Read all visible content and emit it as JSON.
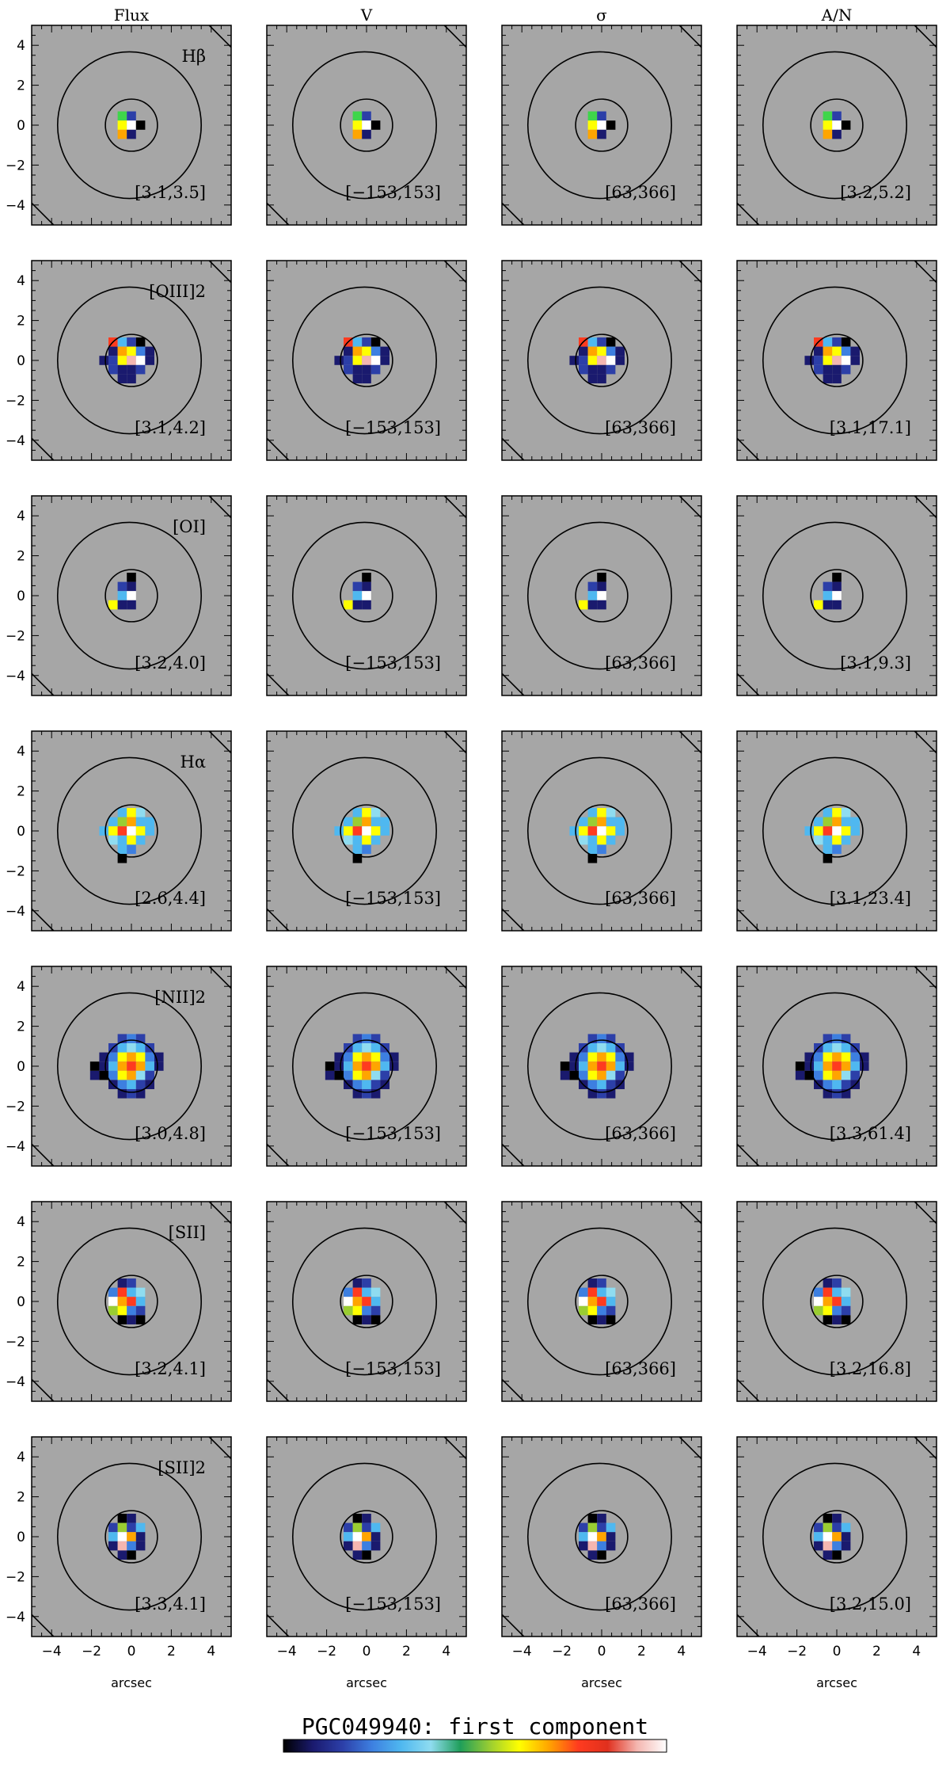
{
  "chart_data": {
    "type": "heatmap",
    "title": "PGC049940: first component",
    "xlabel": "arcsec",
    "ylabel": "",
    "xlim": [
      -5,
      5
    ],
    "ylim": [
      -5,
      5
    ],
    "xticks": [
      -4,
      -2,
      0,
      2,
      4
    ],
    "yticks": [
      -4,
      -2,
      0,
      2,
      4
    ],
    "columns": [
      "Flux",
      "V",
      "σ",
      "A/N"
    ],
    "grid": false,
    "background": "#a6a6a6",
    "colormap": [
      "#000000",
      "#1a1a6e",
      "#2c3fa8",
      "#3d7fe0",
      "#4fb8f0",
      "#8fdcf0",
      "#1f9e5a",
      "#9acd32",
      "#ffff00",
      "#ffa500",
      "#ff3b1f",
      "#e0301e",
      "#f4b6b0",
      "#ffffff"
    ],
    "rows": [
      {
        "line": "Hβ",
        "radius": 1.5,
        "ranges": [
          "[3.1,3.5]",
          "[−153,153]",
          "[63,366]",
          "[3.2,5.2]"
        ],
        "outer_radius": 3.6
      },
      {
        "line": "[OIII]2",
        "radius": 1.5,
        "ranges": [
          "[3.1,4.2]",
          "[−153,153]",
          "[63,366]",
          "[3.1,17.1]"
        ],
        "outer_radius": 3.6
      },
      {
        "line": "[OI]",
        "radius": 1.5,
        "ranges": [
          "[3.2,4.0]",
          "[−153,153]",
          "[63,366]",
          "[3.1,9.3]"
        ],
        "outer_radius": 3.6
      },
      {
        "line": "Hα",
        "radius": 1.5,
        "ranges": [
          "[2.6,4.4]",
          "[−153,153]",
          "[63,366]",
          "[3.1,23.4]"
        ],
        "outer_radius": 3.6
      },
      {
        "line": "[NII]2",
        "radius": 1.5,
        "ranges": [
          "[3.0,4.8]",
          "[−153,153]",
          "[63,366]",
          "[3.3,61.4]"
        ],
        "outer_radius": 3.6
      },
      {
        "line": "[SII]",
        "radius": 1.5,
        "ranges": [
          "[3.2,4.1]",
          "[−153,153]",
          "[63,366]",
          "[3.2,16.8]"
        ],
        "outer_radius": 3.6
      },
      {
        "line": "[SII]2",
        "radius": 1.5,
        "ranges": [
          "[3.3,4.1]",
          "[−153,153]",
          "[63,366]",
          "[3.2,15.0]"
        ],
        "outer_radius": 3.6
      }
    ],
    "pixel_maps": [
      {
        "extent": 0.9,
        "cells": [
          [
            -1,
            1,
            "#3fd64a"
          ],
          [
            0,
            1,
            "#2c3fa8"
          ],
          [
            -1,
            0,
            "#ffff00"
          ],
          [
            0,
            0,
            "#ffffff"
          ],
          [
            1,
            0,
            "#000000"
          ],
          [
            -1,
            -1,
            "#ffa500"
          ],
          [
            0,
            -1,
            "#1a1a6e"
          ]
        ]
      },
      {
        "extent": 1.6,
        "cells": [
          [
            -2,
            2,
            "#ff3b1f"
          ],
          [
            -1,
            2,
            "#4fb8f0"
          ],
          [
            0,
            2,
            "#2c3fa8"
          ],
          [
            1,
            2,
            "#000000"
          ],
          [
            -2,
            1,
            "#1a1a6e"
          ],
          [
            -1,
            1,
            "#ffa500"
          ],
          [
            0,
            1,
            "#ffff00"
          ],
          [
            1,
            1,
            "#3d7fe0"
          ],
          [
            2,
            1,
            "#1a1a6e"
          ],
          [
            -3,
            0,
            "#1a1a6e"
          ],
          [
            -2,
            0,
            "#2c3fa8"
          ],
          [
            -1,
            0,
            "#ffff00"
          ],
          [
            0,
            0,
            "#f4b6b0"
          ],
          [
            1,
            0,
            "#ffffff"
          ],
          [
            2,
            0,
            "#1a1a6e"
          ],
          [
            -2,
            -1,
            "#2c3fa8"
          ],
          [
            -1,
            -1,
            "#1a1a6e"
          ],
          [
            0,
            -1,
            "#1a1a6e"
          ],
          [
            1,
            -1,
            "#2c3fa8"
          ],
          [
            -1,
            -2,
            "#1a1a6e"
          ],
          [
            0,
            -2,
            "#1a1a6e"
          ]
        ]
      },
      {
        "extent": 1.3,
        "cells": [
          [
            0,
            2,
            "#000000"
          ],
          [
            -1,
            1,
            "#2c3fa8"
          ],
          [
            0,
            1,
            "#1a1a6e"
          ],
          [
            -1,
            0,
            "#4fb8f0"
          ],
          [
            0,
            0,
            "#ffffff"
          ],
          [
            -2,
            -1,
            "#ffff00"
          ],
          [
            -1,
            -1,
            "#1a1a6e"
          ],
          [
            0,
            -1,
            "#1a1a6e"
          ]
        ]
      },
      {
        "extent": 1.8,
        "cells": [
          [
            -1,
            2,
            "#4fb8f0"
          ],
          [
            0,
            2,
            "#ffff00"
          ],
          [
            1,
            2,
            "#8fdcf0"
          ],
          [
            -2,
            1,
            "#4fb8f0"
          ],
          [
            -1,
            1,
            "#9acd32"
          ],
          [
            0,
            1,
            "#ffa500"
          ],
          [
            1,
            1,
            "#4fb8f0"
          ],
          [
            2,
            1,
            "#4fb8f0"
          ],
          [
            -3,
            0,
            "#4fb8f0"
          ],
          [
            -2,
            0,
            "#ffff00"
          ],
          [
            -1,
            0,
            "#ff3b1f"
          ],
          [
            0,
            0,
            "#ffffff"
          ],
          [
            1,
            0,
            "#ffff00"
          ],
          [
            2,
            0,
            "#4fb8f0"
          ],
          [
            -2,
            -1,
            "#8fdcf0"
          ],
          [
            -1,
            -1,
            "#4fb8f0"
          ],
          [
            0,
            -1,
            "#ffff00"
          ],
          [
            1,
            -1,
            "#4fb8f0"
          ],
          [
            -1,
            -2,
            "#4fb8f0"
          ],
          [
            0,
            -2,
            "#3d7fe0"
          ],
          [
            -1,
            -3,
            "#000000"
          ]
        ]
      },
      {
        "extent": 2.2,
        "cells": [
          [
            -1,
            3,
            "#2c3fa8"
          ],
          [
            0,
            3,
            "#3d7fe0"
          ],
          [
            1,
            3,
            "#2c3fa8"
          ],
          [
            -2,
            2,
            "#2c3fa8"
          ],
          [
            -1,
            2,
            "#4fb8f0"
          ],
          [
            0,
            2,
            "#8fdcf0"
          ],
          [
            1,
            2,
            "#4fb8f0"
          ],
          [
            2,
            2,
            "#2c3fa8"
          ],
          [
            -3,
            1,
            "#1a1a6e"
          ],
          [
            -2,
            1,
            "#3d7fe0"
          ],
          [
            -1,
            1,
            "#ffff00"
          ],
          [
            0,
            1,
            "#ffa500"
          ],
          [
            1,
            1,
            "#ffff00"
          ],
          [
            2,
            1,
            "#3d7fe0"
          ],
          [
            3,
            1,
            "#1a1a6e"
          ],
          [
            -3,
            0,
            "#1a1a6e"
          ],
          [
            -2,
            0,
            "#4fb8f0"
          ],
          [
            -1,
            0,
            "#ffa500"
          ],
          [
            0,
            0,
            "#ff3b1f"
          ],
          [
            1,
            0,
            "#ffa500"
          ],
          [
            2,
            0,
            "#4fb8f0"
          ],
          [
            3,
            0,
            "#1a1a6e"
          ],
          [
            -3,
            -1,
            "#000000"
          ],
          [
            -2,
            -1,
            "#3d7fe0"
          ],
          [
            -1,
            -1,
            "#ffff00"
          ],
          [
            0,
            -1,
            "#ffa500"
          ],
          [
            1,
            -1,
            "#8fdcf0"
          ],
          [
            2,
            -1,
            "#2c3fa8"
          ],
          [
            -2,
            -2,
            "#1a1a6e"
          ],
          [
            -1,
            -2,
            "#3d7fe0"
          ],
          [
            0,
            -2,
            "#4fb8f0"
          ],
          [
            1,
            -2,
            "#2c3fa8"
          ],
          [
            2,
            -2,
            "#1a1a6e"
          ],
          [
            -1,
            -3,
            "#1a1a6e"
          ],
          [
            0,
            -3,
            "#2c3fa8"
          ],
          [
            1,
            -3,
            "#1a1a6e"
          ],
          [
            -4,
            -1,
            "#1a1a6e"
          ],
          [
            -4,
            0,
            "#000000"
          ]
        ]
      },
      {
        "extent": 1.7,
        "cells": [
          [
            -1,
            2,
            "#1a1a6e"
          ],
          [
            0,
            2,
            "#2c3fa8"
          ],
          [
            -2,
            1,
            "#3d7fe0"
          ],
          [
            -1,
            1,
            "#ff3b1f"
          ],
          [
            0,
            1,
            "#4fb8f0"
          ],
          [
            1,
            1,
            "#8fdcf0"
          ],
          [
            -2,
            0,
            "#ffffff"
          ],
          [
            -1,
            0,
            "#ffa500"
          ],
          [
            0,
            0,
            "#ff3b1f"
          ],
          [
            1,
            0,
            "#4fb8f0"
          ],
          [
            -2,
            -1,
            "#9acd32"
          ],
          [
            -1,
            -1,
            "#ffff00"
          ],
          [
            0,
            -1,
            "#3d7fe0"
          ],
          [
            1,
            -1,
            "#2c3fa8"
          ],
          [
            -1,
            -2,
            "#000000"
          ],
          [
            0,
            -2,
            "#1a1a6e"
          ],
          [
            1,
            -2,
            "#000000"
          ]
        ]
      },
      {
        "extent": 1.7,
        "cells": [
          [
            -1,
            2,
            "#000000"
          ],
          [
            0,
            2,
            "#1a1a6e"
          ],
          [
            -2,
            1,
            "#2c3fa8"
          ],
          [
            -1,
            1,
            "#9acd32"
          ],
          [
            0,
            1,
            "#2c3fa8"
          ],
          [
            1,
            1,
            "#4fb8f0"
          ],
          [
            -2,
            0,
            "#4fb8f0"
          ],
          [
            -1,
            0,
            "#ffffff"
          ],
          [
            0,
            0,
            "#ffa500"
          ],
          [
            1,
            0,
            "#1a1a6e"
          ],
          [
            -2,
            -1,
            "#1a1a6e"
          ],
          [
            -1,
            -1,
            "#f4b6b0"
          ],
          [
            0,
            -1,
            "#3d7fe0"
          ],
          [
            1,
            -1,
            "#1a1a6e"
          ],
          [
            -1,
            -2,
            "#1a1a6e"
          ],
          [
            0,
            -2,
            "#000000"
          ]
        ]
      }
    ]
  }
}
